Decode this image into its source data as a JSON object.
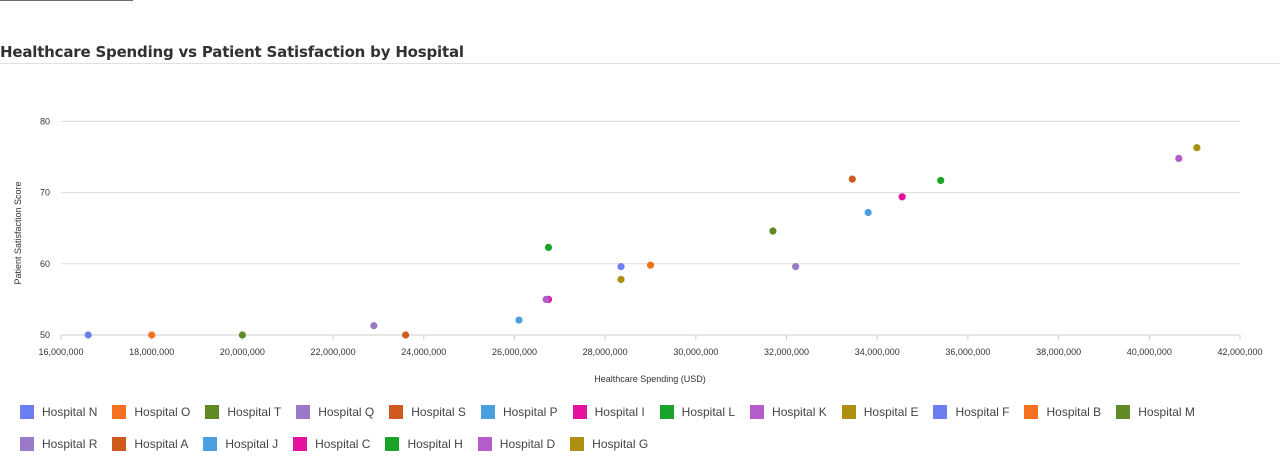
{
  "header": {
    "title": "Healthcare Spending vs Patient Satisfaction by Hospital"
  },
  "chart_data": {
    "type": "scatter",
    "title": "Healthcare Spending vs Patient Satisfaction by Hospital",
    "xlabel": "Healthcare Spending (USD)",
    "ylabel": "Patient Satisfaction Score",
    "xlim": [
      16000000,
      42000000
    ],
    "ylim": [
      50,
      83
    ],
    "xticks": [
      16000000,
      18000000,
      20000000,
      22000000,
      24000000,
      26000000,
      28000000,
      30000000,
      32000000,
      34000000,
      36000000,
      38000000,
      40000000,
      42000000
    ],
    "xtick_labels": [
      "16,000,000",
      "18,000,000",
      "20,000,000",
      "22,000,000",
      "24,000,000",
      "26,000,000",
      "28,000,000",
      "30,000,000",
      "32,000,000",
      "34,000,000",
      "36,000,000",
      "38,000,000",
      "40,000,000",
      "42,000,000"
    ],
    "yticks": [
      50,
      60,
      70,
      80
    ],
    "ytick_labels": [
      "50",
      "60",
      "70",
      "80"
    ],
    "grid": true,
    "legend_position": "bottom",
    "series": [
      {
        "name": "Hospital N",
        "color": "#6b7ff0",
        "points": [
          [
            16600000,
            50.0
          ]
        ]
      },
      {
        "name": "Hospital O",
        "color": "#f4711f",
        "points": [
          [
            18000000,
            50.0
          ]
        ]
      },
      {
        "name": "Hospital T",
        "color": "#5f8a25",
        "points": [
          [
            20000000,
            50.0
          ]
        ]
      },
      {
        "name": "Hospital Q",
        "color": "#9a7ac6",
        "points": [
          [
            22900000,
            51.3
          ]
        ]
      },
      {
        "name": "Hospital S",
        "color": "#d05a1c",
        "points": [
          [
            23600000,
            50.0
          ]
        ]
      },
      {
        "name": "Hospital P",
        "color": "#4a9fe0",
        "points": [
          [
            26100000,
            52.1
          ]
        ]
      },
      {
        "name": "Hospital I",
        "color": "#e6109e",
        "points": [
          [
            34550000,
            69.4
          ]
        ]
      },
      {
        "name": "Hospital L",
        "color": "#19a328",
        "points": [
          [
            35400000,
            71.7
          ]
        ]
      },
      {
        "name": "Hospital K",
        "color": "#b55ccc",
        "points": [
          [
            40650000,
            74.8
          ]
        ]
      },
      {
        "name": "Hospital E",
        "color": "#ad8f10",
        "points": [
          [
            28350000,
            57.8
          ]
        ]
      },
      {
        "name": "Hospital F",
        "color": "#6b7ff0",
        "points": [
          [
            28350000,
            59.6
          ]
        ]
      },
      {
        "name": "Hospital B",
        "color": "#f4711f",
        "points": [
          [
            29000000,
            59.8
          ]
        ]
      },
      {
        "name": "Hospital M",
        "color": "#5f8a25",
        "points": [
          [
            31700000,
            64.6
          ]
        ]
      },
      {
        "name": "Hospital R",
        "color": "#9a7ac6",
        "points": [
          [
            32200000,
            59.6
          ]
        ]
      },
      {
        "name": "Hospital A",
        "color": "#d05a1c",
        "points": [
          [
            33450000,
            71.9
          ]
        ]
      },
      {
        "name": "Hospital J",
        "color": "#4a9fe0",
        "points": [
          [
            33800000,
            67.2
          ]
        ]
      },
      {
        "name": "Hospital C",
        "color": "#e6109e",
        "points": [
          [
            26750000,
            55.0
          ]
        ]
      },
      {
        "name": "Hospital H",
        "color": "#19a328",
        "points": [
          [
            26750000,
            62.3
          ]
        ]
      },
      {
        "name": "Hospital D",
        "color": "#b55ccc",
        "points": [
          [
            26700000,
            55.0
          ]
        ]
      },
      {
        "name": "Hospital G",
        "color": "#ad8f10",
        "points": [
          [
            41050000,
            76.3
          ]
        ]
      }
    ]
  }
}
